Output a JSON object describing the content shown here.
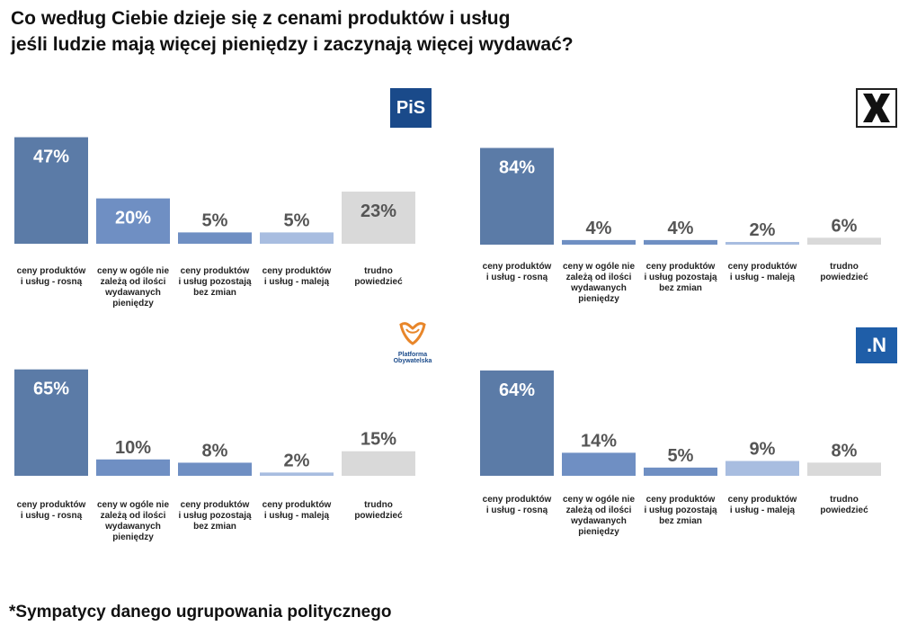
{
  "title": {
    "line1": "Co według Ciebie dzieje się z cenami produktów i usług",
    "line2": "jeśli ludzie mają więcej pieniędzy i zaczynają więcej wydawać?"
  },
  "footnote": "*Sympatycy danego ugrupowania politycznego",
  "logos": {
    "pis": {
      "text": "PiS"
    },
    "po": {
      "text": "Platforma Obywatelska"
    },
    "n": {
      "text": ".N"
    }
  },
  "colors": {
    "bars": [
      "#5b7ba7",
      "#6f8fc3",
      "#6f8fc3",
      "#a8bde0",
      "#d9d9d9"
    ],
    "label_dark_bg": "#ffffff",
    "label_light_bg": "#555555"
  },
  "chart_data": [
    {
      "type": "bar",
      "party": "PiS",
      "categories": [
        "ceny produktów i usług - rosną",
        "ceny w ogóle nie zależą od ilości wydawanych pieniędzy",
        "ceny produktów i usług pozostają bez zmian",
        "ceny produktów i usług - maleją",
        "trudno powiedzieć"
      ],
      "category_lines": [
        [
          "ceny produktów",
          "i usług - rosną"
        ],
        [
          "ceny w ogóle nie",
          "zależą od ilości",
          "wydawanych",
          "pieniędzy"
        ],
        [
          "ceny produktów",
          "i usług pozostają",
          "bez zmian"
        ],
        [
          "ceny produktów",
          "i usług - maleją"
        ],
        [
          "trudno",
          "powiedzieć"
        ]
      ],
      "values": [
        47,
        20,
        5,
        5,
        23
      ],
      "value_labels": [
        "47%",
        "20%",
        "5%",
        "5%",
        "23%"
      ],
      "ylim": [
        0,
        100
      ]
    },
    {
      "type": "bar",
      "party": "Kukiz'15",
      "categories": [
        "ceny produktów i usług - rosną",
        "ceny w ogóle nie zależą od ilości wydawanych pieniędzy",
        "ceny produktów i usług pozostają bez zmian",
        "ceny produktów i usług - maleją",
        "trudno powiedzieć"
      ],
      "category_lines": [
        [
          "ceny produktów",
          "i usług - rosną"
        ],
        [
          "ceny w ogóle nie",
          "zależą od ilości",
          "wydawanych",
          "pieniędzy"
        ],
        [
          "ceny produktów",
          "i usług pozostają",
          "bez zmian"
        ],
        [
          "ceny produktów",
          "i usług - maleją"
        ],
        [
          "trudno",
          "powiedzieć"
        ]
      ],
      "values": [
        84,
        4,
        4,
        2,
        6
      ],
      "value_labels": [
        "84%",
        "4%",
        "4%",
        "2%",
        "6%"
      ],
      "ylim": [
        0,
        100
      ]
    },
    {
      "type": "bar",
      "party": "Platforma Obywatelska",
      "categories": [
        "ceny produktów i usług - rosną",
        "ceny w ogóle nie zależą od ilości wydawanych pieniędzy",
        "ceny produktów i usług pozostają bez zmian",
        "ceny produktów i usług - maleją",
        "trudno powiedzieć"
      ],
      "category_lines": [
        [
          "ceny produktów",
          "i usług - rosną"
        ],
        [
          "ceny w ogóle nie",
          "zależą od ilości",
          "wydawanych",
          "pieniędzy"
        ],
        [
          "ceny produktów",
          "i usług pozostają",
          "bez zmian"
        ],
        [
          "ceny produktów",
          "i usług - maleją"
        ],
        [
          "trudno",
          "powiedzieć"
        ]
      ],
      "values": [
        65,
        10,
        8,
        2,
        15
      ],
      "value_labels": [
        "65%",
        "10%",
        "8%",
        "2%",
        "15%"
      ],
      "ylim": [
        0,
        100
      ]
    },
    {
      "type": "bar",
      "party": "Nowoczesna",
      "categories": [
        "ceny produktów i usług - rosną",
        "ceny w ogóle nie zależą od ilości wydawanych pieniędzy",
        "ceny produktów i usług pozostają bez zmian",
        "ceny produktów i usług - maleją",
        "trudno powiedzieć"
      ],
      "category_lines": [
        [
          "ceny produktów",
          "i usług - rosną"
        ],
        [
          "ceny w ogóle nie",
          "zależą od ilości",
          "wydawanych",
          "pieniędzy"
        ],
        [
          "ceny produktów",
          "i usług pozostają",
          "bez zmian"
        ],
        [
          "ceny produktów",
          "i usług - maleją"
        ],
        [
          "trudno",
          "powiedzieć"
        ]
      ],
      "values": [
        64,
        14,
        5,
        9,
        8
      ],
      "value_labels": [
        "64%",
        "14%",
        "5%",
        "9%",
        "8%"
      ],
      "ylim": [
        0,
        100
      ]
    }
  ]
}
